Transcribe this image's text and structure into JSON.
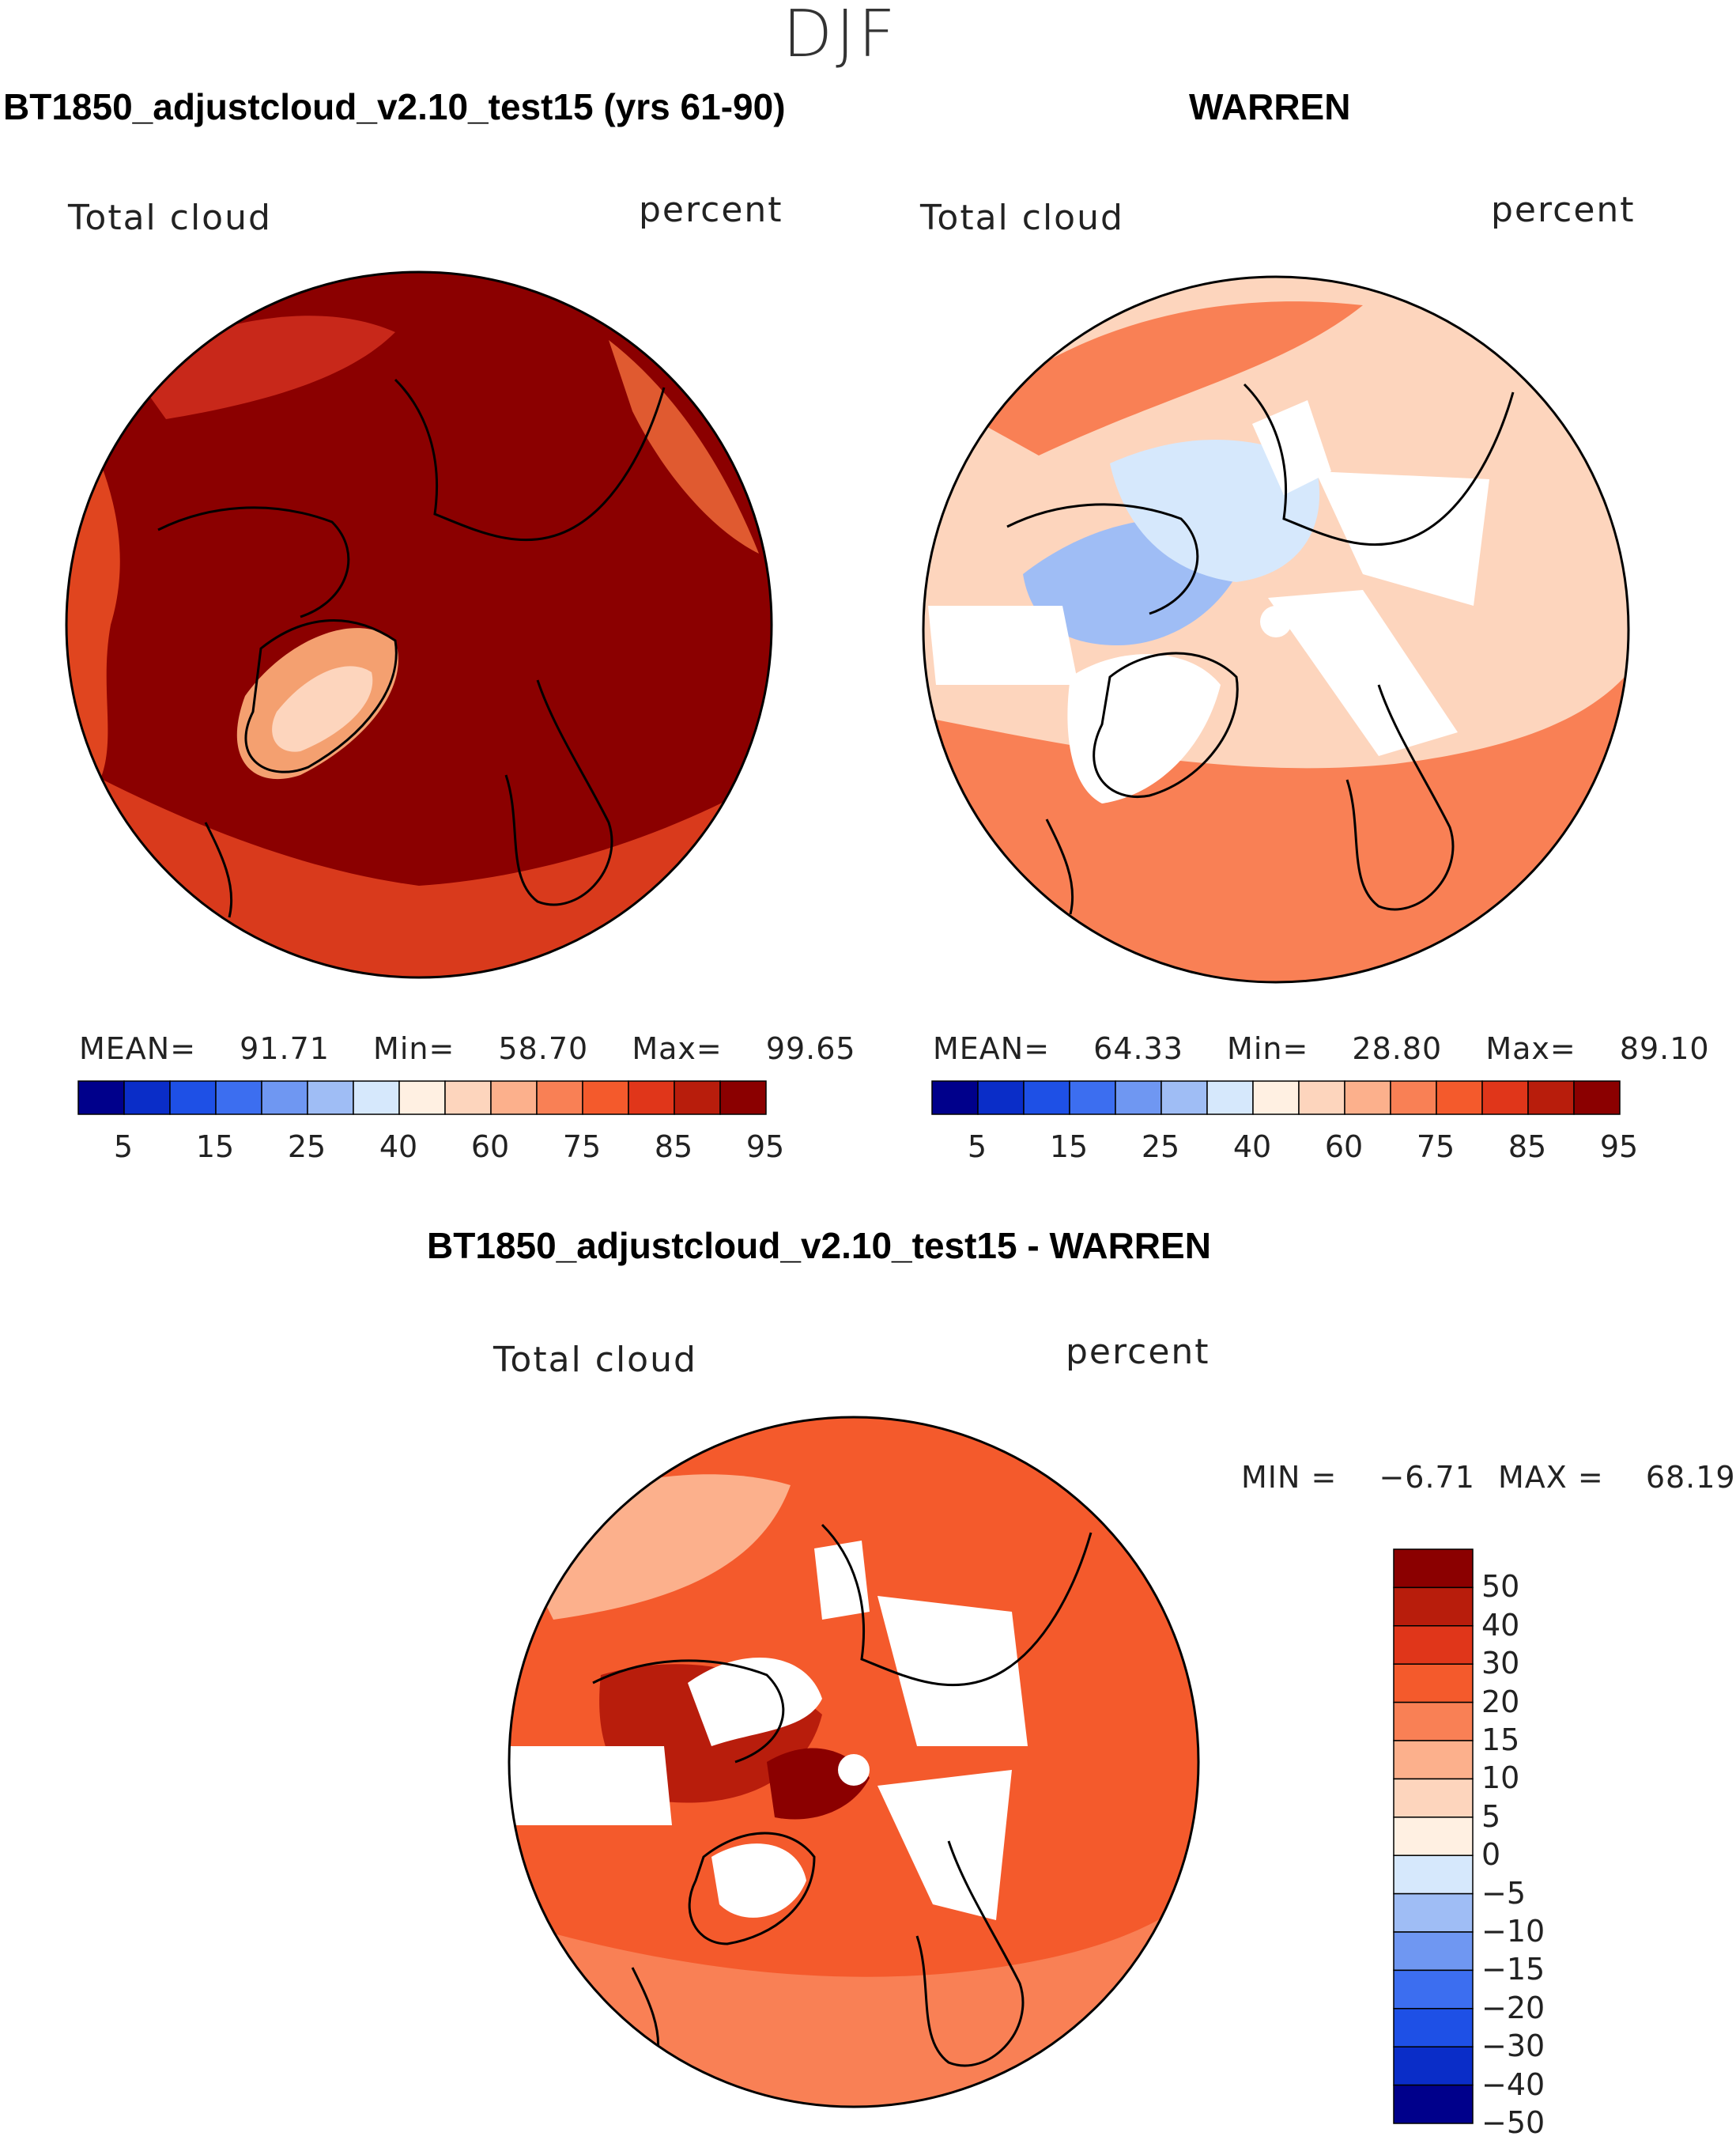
{
  "season": "DJF",
  "panels": [
    {
      "title": "BT1850_adjustcloud_v2.10_test15 (yrs 61-90)",
      "variable": "Total cloud",
      "units": "percent",
      "stats": {
        "mean_label": "MEAN=",
        "mean": "91.71",
        "min_label": "Min=",
        "min": "58.70",
        "max_label": "Max=",
        "max": "99.65"
      }
    },
    {
      "title": "WARREN",
      "variable": "Total cloud",
      "units": "percent",
      "stats": {
        "mean_label": "MEAN=",
        "mean": "64.33",
        "min_label": "Min=",
        "min": "28.80",
        "max_label": "Max=",
        "max": "89.10"
      }
    },
    {
      "title": "BT1850_adjustcloud_v2.10_test15 - WARREN",
      "variable": "Total cloud",
      "units": "percent",
      "stats": {
        "min_label": "MIN =",
        "min": "−6.71",
        "max_label": "MAX =",
        "max": "68.19"
      }
    }
  ],
  "colorbar_main": {
    "colors": [
      "#00008b",
      "#0a2dc8",
      "#1e50e6",
      "#3c6ef0",
      "#6f97f2",
      "#9fbdf5",
      "#d6e8fc",
      "#fff0e2",
      "#fdd5bd",
      "#fcb08c",
      "#f98055",
      "#f45a2c",
      "#e0361a",
      "#b81d0c",
      "#8b0000"
    ],
    "ticks": [
      "5",
      "15",
      "25",
      "40",
      "60",
      "75",
      "85",
      "95"
    ]
  },
  "colorbar_diff": {
    "colors": [
      "#8b0000",
      "#b81d0c",
      "#e0361a",
      "#f45a2c",
      "#f98055",
      "#fcb08c",
      "#fdd5bd",
      "#fff0e2",
      "#d6e8fc",
      "#9fbdf5",
      "#6f97f2",
      "#3c6ef0",
      "#1e50e6",
      "#0a2dc8",
      "#00008b"
    ],
    "ticks": [
      "50",
      "40",
      "30",
      "20",
      "15",
      "10",
      "5",
      "0",
      "−5",
      "−10",
      "−15",
      "−20",
      "−30",
      "−40",
      "−50"
    ]
  },
  "chart_data": [
    {
      "type": "heatmap",
      "projection": "north polar stereographic",
      "title": "BT1850_adjustcloud_v2.10_test15 (yrs 61-90)",
      "field": "Total cloud",
      "units": "percent",
      "mean": 91.71,
      "min": 58.7,
      "max": 99.65,
      "levels": [
        5,
        10,
        15,
        20,
        25,
        30,
        40,
        50,
        60,
        70,
        75,
        80,
        85,
        90,
        95
      ]
    },
    {
      "type": "heatmap",
      "projection": "north polar stereographic",
      "title": "WARREN",
      "field": "Total cloud",
      "units": "percent",
      "mean": 64.33,
      "min": 28.8,
      "max": 89.1,
      "levels": [
        5,
        10,
        15,
        20,
        25,
        30,
        40,
        50,
        60,
        70,
        75,
        80,
        85,
        90,
        95
      ]
    },
    {
      "type": "heatmap",
      "projection": "north polar stereographic",
      "title": "BT1850_adjustcloud_v2.10_test15 - WARREN",
      "field": "Total cloud",
      "units": "percent",
      "min": -6.71,
      "max": 68.19,
      "levels": [
        -50,
        -40,
        -30,
        -20,
        -15,
        -10,
        -5,
        0,
        5,
        10,
        15,
        20,
        30,
        40,
        50
      ]
    }
  ]
}
